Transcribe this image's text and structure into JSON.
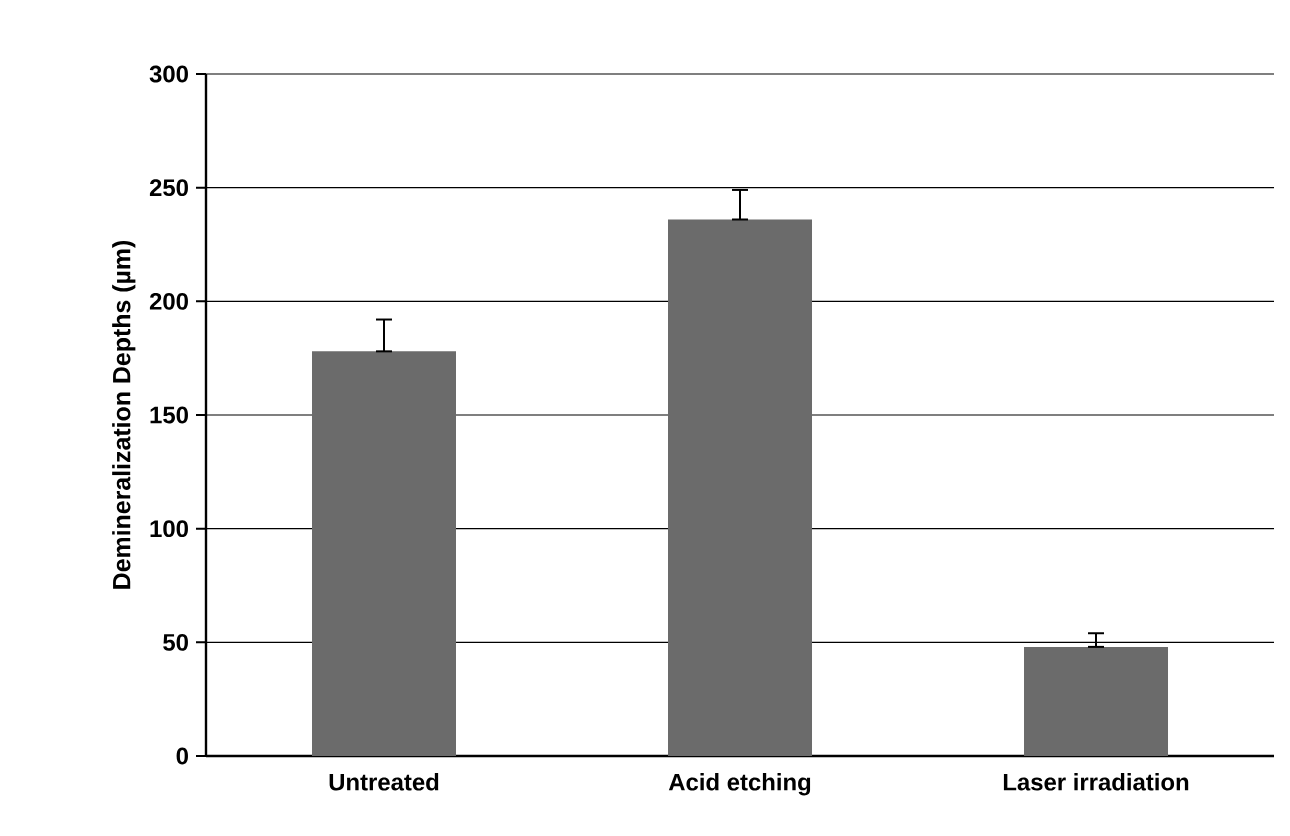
{
  "chart_data": {
    "type": "bar",
    "ylabel": "Demineralization Depths (µm)",
    "categories": [
      "Untreated",
      "Acid etching",
      "Laser irradiation"
    ],
    "values": [
      178,
      236,
      48
    ],
    "errors": [
      [
        178,
        192
      ],
      [
        236,
        249
      ],
      [
        48,
        54
      ]
    ],
    "color": "#6b6b6b",
    "ylim": [
      0,
      300
    ],
    "yticks": [
      0,
      50,
      100,
      150,
      200,
      250,
      300
    ],
    "grid": "y"
  }
}
